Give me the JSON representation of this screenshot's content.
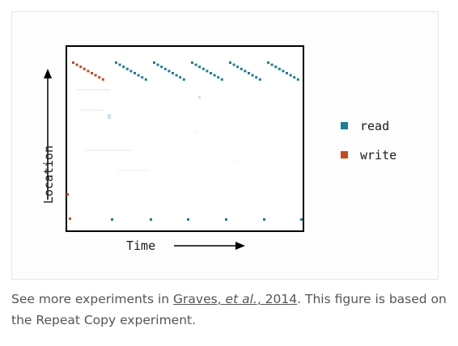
{
  "figure": {
    "x_axis_label": "Time",
    "y_axis_label": "Location",
    "legend": [
      {
        "label": "read",
        "color": "#1b7f96"
      },
      {
        "label": "write",
        "color": "#c8491a"
      }
    ],
    "colors": {
      "read": "#1b7f96",
      "write": "#c8491a",
      "axis": "#000000",
      "card_border": "#e6e6e6"
    }
  },
  "caption": {
    "prefix": "See more experiments in ",
    "link_author": "Graves, ",
    "link_etal": "et al.",
    "link_year": ", 2014",
    "suffix": ". This figure is based on the Repeat Copy experiment."
  }
}
